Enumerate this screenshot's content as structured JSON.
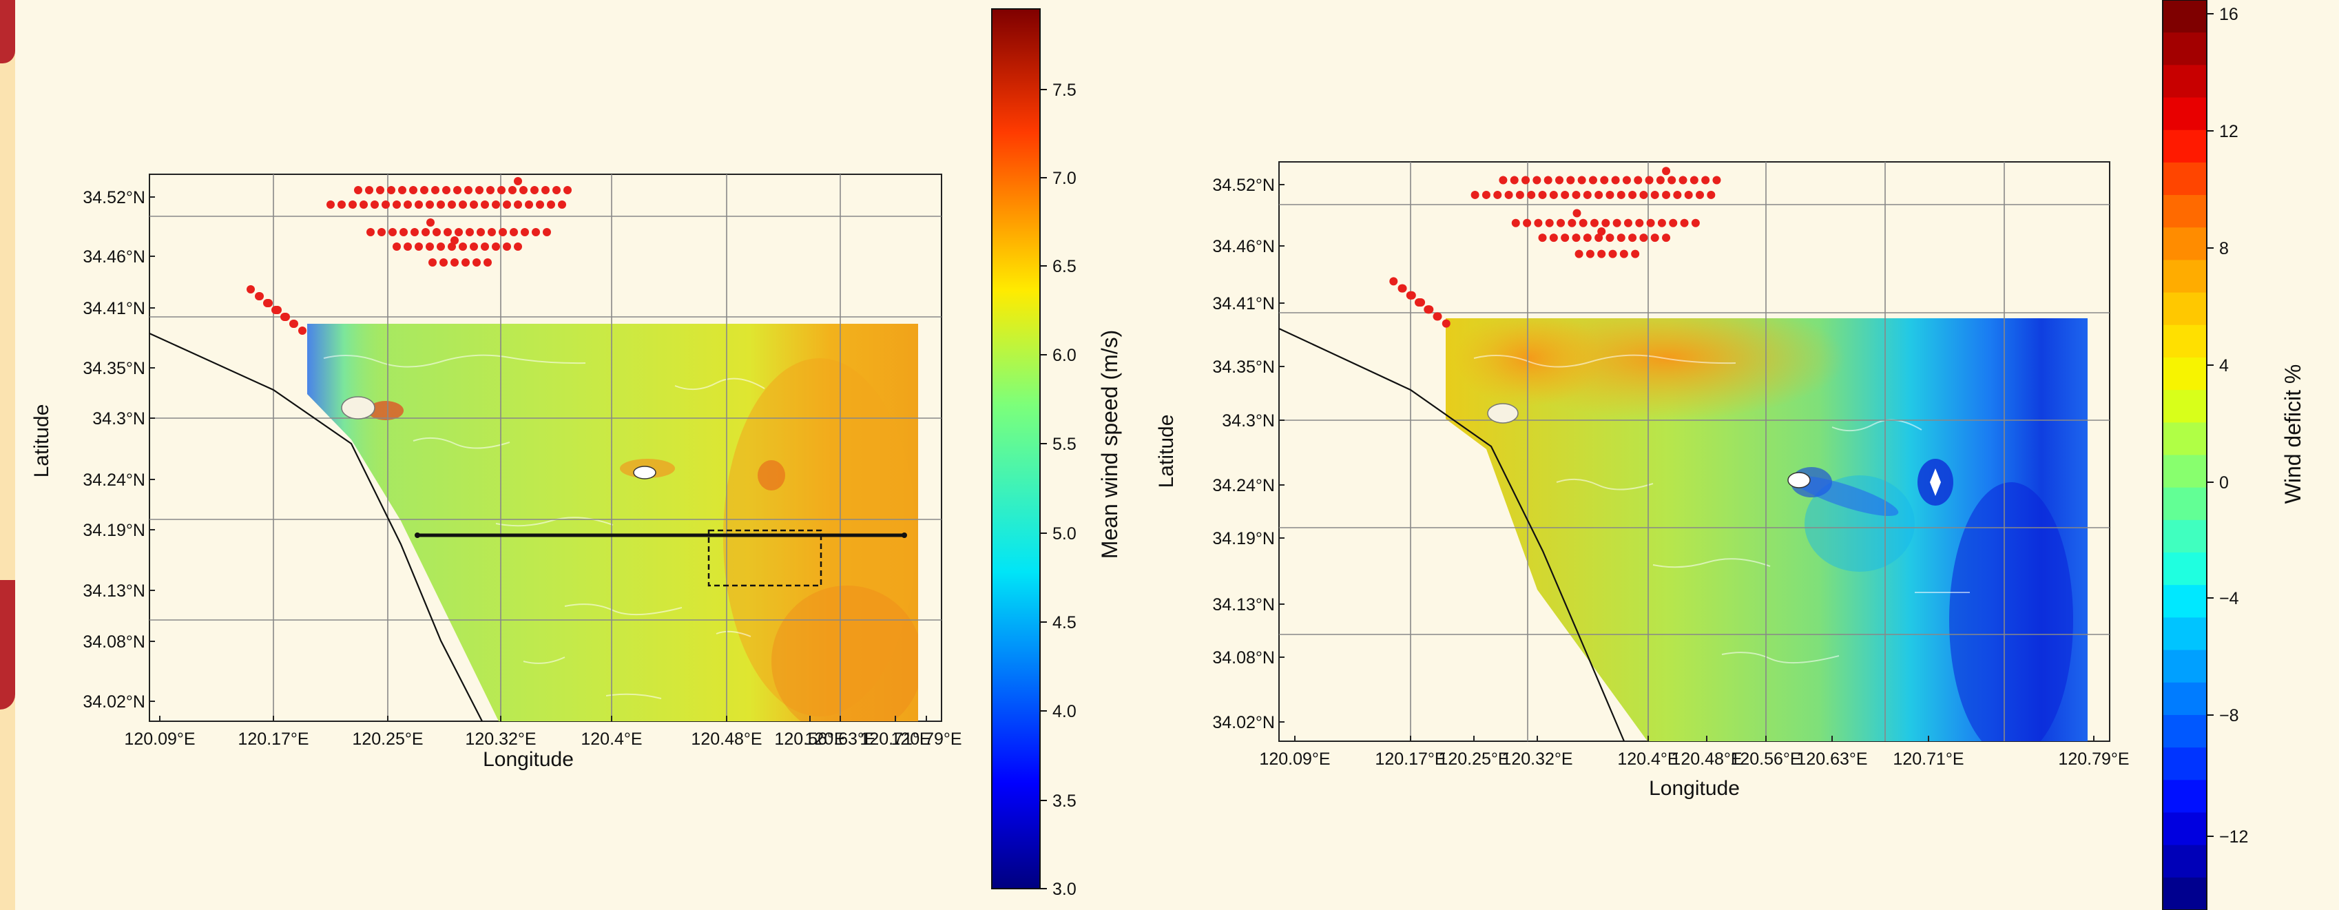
{
  "colors": {
    "background": "#fdf8e6",
    "turbine": "#e8201c",
    "accent_tab": "#b9282d",
    "ocean_mid": "#c3e84a",
    "land": "#fdf8e6"
  },
  "left_map": {
    "x_ticks": [
      "120.09°E",
      "120.17°E",
      "120.25°E",
      "120.32°E",
      "120.4°E",
      "120.48°E",
      "120.56°E",
      "120.63°E",
      "120.71°E",
      "120.79°E"
    ],
    "y_ticks": [
      "34.52°N",
      "34.46°N",
      "34.41°N",
      "34.35°N",
      "34.3°N",
      "34.24°N",
      "34.19°N",
      "34.13°N",
      "34.08°N",
      "34.02°N"
    ],
    "xlabel": "Longitude",
    "ylabel": "Latitude",
    "colorbar": {
      "label": "Mean wind speed (m/s)",
      "ticks": [
        "7.5",
        "7.0",
        "6.5",
        "6.0",
        "5.5",
        "5.0",
        "4.5",
        "4.0",
        "3.5",
        "3.0"
      ],
      "range": [
        3.0,
        7.9
      ]
    }
  },
  "right_map": {
    "x_ticks": [
      "120.09°E",
      "120.17°E",
      "120.25°E",
      "120.32°E",
      "120.4°E",
      "120.48°E",
      "120.56°E",
      "120.63°E",
      "120.71°E",
      "120.79°E"
    ],
    "y_ticks": [
      "34.52°N",
      "34.46°N",
      "34.41°N",
      "34.35°N",
      "34.3°N",
      "34.24°N",
      "34.19°N",
      "34.13°N",
      "34.08°N",
      "34.02°N"
    ],
    "xlabel": "Longitude",
    "ylabel": "Latitude",
    "colorbar": {
      "label": "Wind deficit %",
      "ticks": [
        "16",
        "12",
        "8",
        "4",
        "0",
        "−4",
        "−8",
        "−12"
      ],
      "range": [
        -14,
        17
      ]
    }
  }
}
